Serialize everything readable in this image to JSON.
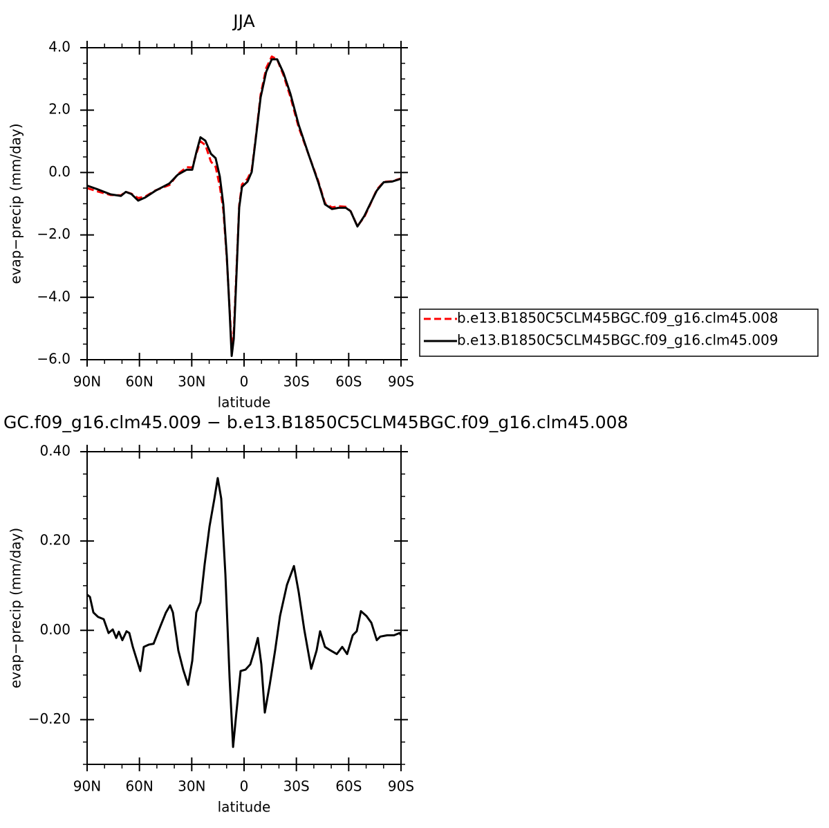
{
  "chart_data": [
    {
      "type": "line",
      "title": "JJA",
      "xlabel": "latitude",
      "ylabel": "evap−precip (mm/day)",
      "xlim": [
        90,
        -90
      ],
      "xticks": [
        {
          "value": 90,
          "label": "90N"
        },
        {
          "value": 60,
          "label": "60N"
        },
        {
          "value": 30,
          "label": "30N"
        },
        0,
        {
          "value": -30,
          "label": "30S"
        },
        {
          "value": -60,
          "label": "60S"
        },
        {
          "value": -90,
          "label": "90S"
        }
      ],
      "ylim": [
        -6,
        4
      ],
      "yticks": [
        {
          "value": -6,
          "label": "−6.0"
        },
        {
          "value": -4,
          "label": "−4.0"
        },
        {
          "value": -2,
          "label": "−2.0"
        },
        {
          "value": 0,
          "label": "0.0"
        },
        {
          "value": 2,
          "label": "2.0"
        },
        {
          "value": 4,
          "label": "4.0"
        }
      ],
      "legend": "right",
      "x": [
        90,
        84.4,
        76.5,
        70.6,
        67.8,
        64.6,
        60.7,
        56.7,
        50.7,
        42.8,
        38,
        32.9,
        29.7,
        27.4,
        25,
        22.2,
        19,
        16.3,
        13.9,
        11.9,
        9.9,
        8.3,
        7.1,
        5.9,
        4.4,
        2.8,
        1.2,
        -2,
        -4.4,
        -6.7,
        -9.5,
        -12.7,
        -15.9,
        -19,
        -22.6,
        -26.6,
        -31.3,
        -37.3,
        -42.4,
        -46.4,
        -50.4,
        -54.3,
        -58.3,
        -61.1,
        -65,
        -69,
        -72.2,
        -76.1,
        -80.1,
        -84.9,
        -90
      ],
      "series": [
        {
          "name": "b.e13.B1850C5CLM45BGC.f09_g16.clm45.008",
          "color": "#ff0000",
          "line_style": "dashed",
          "values": [
            -0.5,
            -0.6,
            -0.72,
            -0.73,
            -0.62,
            -0.68,
            -0.82,
            -0.77,
            -0.57,
            -0.4,
            -0.05,
            0.17,
            0.16,
            0.6,
            1.0,
            0.88,
            0.35,
            0.18,
            -0.45,
            -1.2,
            -2.75,
            -4.35,
            -5.62,
            -5.1,
            -3.2,
            -1.05,
            -0.38,
            -0.2,
            0.08,
            1.12,
            2.5,
            3.35,
            3.72,
            3.62,
            3.12,
            2.42,
            1.45,
            0.53,
            -0.25,
            -0.98,
            -1.12,
            -1.08,
            -1.1,
            -1.24,
            -1.72,
            -1.42,
            -1.04,
            -0.55,
            -0.3,
            -0.28,
            -0.19
          ]
        },
        {
          "name": "b.e13.B1850C5CLM45BGC.f09_g16.clm45.009",
          "color": "#000000",
          "line_style": "solid",
          "values": [
            -0.42,
            -0.53,
            -0.7,
            -0.75,
            -0.62,
            -0.69,
            -0.9,
            -0.8,
            -0.58,
            -0.35,
            -0.07,
            0.09,
            0.09,
            0.64,
            1.13,
            1.02,
            0.6,
            0.46,
            -0.13,
            -1.02,
            -2.68,
            -4.45,
            -5.88,
            -5.33,
            -3.34,
            -1.13,
            -0.46,
            -0.29,
            0.02,
            1.08,
            2.41,
            3.23,
            3.63,
            3.63,
            3.19,
            2.52,
            1.53,
            0.53,
            -0.29,
            -1.02,
            -1.17,
            -1.13,
            -1.13,
            -1.24,
            -1.73,
            -1.39,
            -1.02,
            -0.58,
            -0.31,
            -0.29,
            -0.2
          ]
        }
      ]
    },
    {
      "type": "line",
      "title": "GC.f09_g16.clm45.009 − b.e13.B1850C5CLM45BGC.f09_g16.clm45.008",
      "xlabel": "latitude",
      "ylabel": "evap−precip (mm/day)",
      "xlim": [
        90,
        -90
      ],
      "xticks": [
        {
          "value": 90,
          "label": "90N"
        },
        {
          "value": 60,
          "label": "60N"
        },
        {
          "value": 30,
          "label": "30N"
        },
        0,
        {
          "value": -30,
          "label": "30S"
        },
        {
          "value": -60,
          "label": "60S"
        },
        {
          "value": -90,
          "label": "90S"
        }
      ],
      "ylim": [
        -0.3,
        0.4
      ],
      "yticks": [
        {
          "value": -0.2,
          "label": "−0.20"
        },
        {
          "value": 0,
          "label": "0.00"
        },
        {
          "value": 0.2,
          "label": "0.20"
        },
        {
          "value": 0.4,
          "label": "0.40"
        }
      ],
      "x": [
        90,
        88.4,
        86.4,
        83.7,
        80.5,
        77.7,
        75.3,
        73.3,
        71.8,
        69.8,
        67.4,
        65.8,
        63.8,
        59.5,
        57.5,
        54.7,
        51.9,
        48,
        44.8,
        42.4,
        40.8,
        37.7,
        34.9,
        32.1,
        29.7,
        27.4,
        25,
        22.6,
        19.8,
        17,
        15.1,
        13.1,
        10.7,
        8.3,
        6.3,
        4.4,
        2,
        -0.8,
        -3.6,
        -6,
        -7.9,
        -9.9,
        -11.9,
        -14.7,
        -17.8,
        -20.6,
        -24.6,
        -28.6,
        -31.3,
        -34.5,
        -38.5,
        -41.6,
        -43.6,
        -46.4,
        -49.6,
        -53.2,
        -56.3,
        -59.1,
        -62.3,
        -64.6,
        -67,
        -70.2,
        -73,
        -76.1,
        -78.1,
        -82.1,
        -86,
        -89.2,
        -90
      ],
      "series": [
        {
          "color": "#000000",
          "line_style": "solid",
          "values": [
            0.08,
            0.075,
            0.04,
            0.03,
            0.025,
            -0.006,
            0.002,
            -0.017,
            -0.003,
            -0.022,
            -0.002,
            -0.006,
            -0.037,
            -0.091,
            -0.037,
            -0.032,
            -0.03,
            0.009,
            0.04,
            0.056,
            0.04,
            -0.045,
            -0.088,
            -0.122,
            -0.068,
            0.04,
            0.063,
            0.148,
            0.233,
            0.295,
            0.341,
            0.295,
            0.125,
            -0.107,
            -0.261,
            -0.184,
            -0.091,
            -0.088,
            -0.076,
            -0.045,
            -0.017,
            -0.076,
            -0.184,
            -0.122,
            -0.045,
            0.032,
            0.102,
            0.144,
            0.086,
            0.002,
            -0.086,
            -0.045,
            -0.002,
            -0.037,
            -0.045,
            -0.053,
            -0.037,
            -0.053,
            -0.011,
            -0.002,
            0.043,
            0.032,
            0.017,
            -0.022,
            -0.014,
            -0.011,
            -0.011,
            -0.006,
            -0.011
          ]
        }
      ]
    }
  ]
}
